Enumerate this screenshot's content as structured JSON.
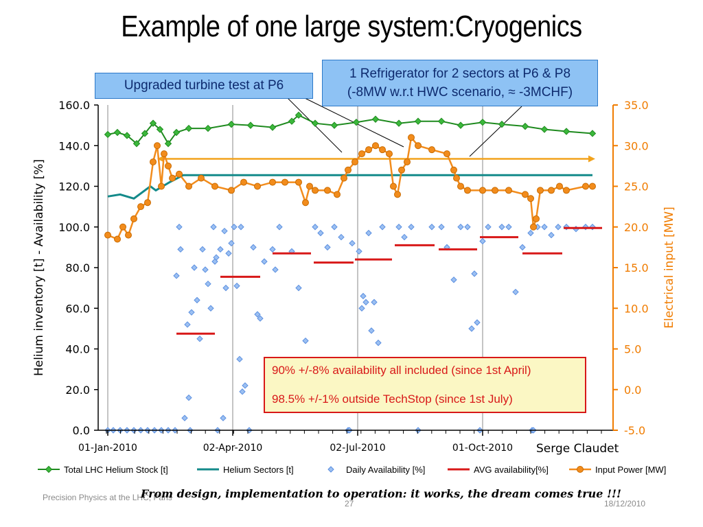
{
  "slide": {
    "title": "Example of one large system:Cryogenics",
    "author": "Serge Claudet",
    "footer_left": "Precision Physics at the LHC, Paris",
    "footer_page": "27",
    "footer_date": "18/12/2010",
    "motto": "From design, implementation to operation: it works, the dream comes true !!!"
  },
  "callouts": {
    "turbine": "Upgraded turbine test at P6",
    "refrigerator_line1": "1 Refrigerator for 2 sectors at  P6 & P8",
    "refrigerator_line2": "(-8MW w.r.t HWC scenario, ≈ -3MCHF)"
  },
  "note_box": {
    "line1": "90% +/-8% availability all included (since 1st April)",
    "line2": "98.5% +/-1% outside TechStop (since 1st July)"
  },
  "colors": {
    "stock": "#1e8a1e",
    "stock_marker": "#3cb83c",
    "sectors": "#138a8a",
    "availability": "#5b8fe0",
    "avg": "#d81818",
    "power": "#f28c1c",
    "right_axis": "#f07c00",
    "grid": "#888888"
  },
  "chart_data": {
    "type": "line",
    "x_type": "date",
    "x_range": [
      "2009-12-25",
      "2011-01-04"
    ],
    "x_ticks": [
      "2010-01-01",
      "2010-04-02",
      "2010-07-02",
      "2010-10-01"
    ],
    "x_tick_labels": [
      "01-Jan-2010",
      "02-Apr-2010",
      "02-Jul-2010",
      "01-Oct-2010"
    ],
    "ylabel": "Helium inventory [t]   - Availability [%]",
    "ylim": [
      0,
      160
    ],
    "y_ticks": [
      "0.0",
      "20.0",
      "40.0",
      "60.0",
      "80.0",
      "100.0",
      "120.0",
      "140.0",
      "160.0"
    ],
    "y2label": "Electrical input [MW]",
    "y2lim": [
      -5,
      35
    ],
    "y2_ticks": [
      "-5.0",
      "0.0",
      "5.0",
      "10.0",
      "15.0",
      "20.0",
      "25.0",
      "30.0",
      "35.0"
    ],
    "grid": "vertical-at-x-ticks",
    "legend_position": "bottom",
    "series": [
      {
        "name": "Total LHC Helium Stock [t]",
        "axis": "left",
        "style": "line-diamond",
        "points": [
          [
            "2010-01-01",
            145.5
          ],
          [
            "2010-01-08",
            146.5
          ],
          [
            "2010-01-15",
            145
          ],
          [
            "2010-01-22",
            141
          ],
          [
            "2010-01-28",
            146
          ],
          [
            "2010-02-03",
            151
          ],
          [
            "2010-02-08",
            148
          ],
          [
            "2010-02-14",
            141
          ],
          [
            "2010-02-20",
            146.5
          ],
          [
            "2010-03-01",
            148.5
          ],
          [
            "2010-03-15",
            148.5
          ],
          [
            "2010-04-01",
            150.5
          ],
          [
            "2010-04-15",
            150
          ],
          [
            "2010-05-01",
            149
          ],
          [
            "2010-05-15",
            152
          ],
          [
            "2010-05-20",
            155
          ],
          [
            "2010-06-01",
            151
          ],
          [
            "2010-06-15",
            150
          ],
          [
            "2010-07-01",
            151.5
          ],
          [
            "2010-07-15",
            153
          ],
          [
            "2010-08-01",
            151
          ],
          [
            "2010-08-15",
            152
          ],
          [
            "2010-09-01",
            152
          ],
          [
            "2010-09-15",
            150
          ],
          [
            "2010-10-01",
            151.5
          ],
          [
            "2010-10-15",
            150.5
          ],
          [
            "2010-11-01",
            149.5
          ],
          [
            "2010-11-15",
            148
          ],
          [
            "2010-12-01",
            147
          ],
          [
            "2010-12-20",
            146
          ]
        ]
      },
      {
        "name": "Helium Sectors [t]",
        "axis": "left",
        "style": "line",
        "points": [
          [
            "2010-01-01",
            115
          ],
          [
            "2010-01-10",
            116
          ],
          [
            "2010-01-20",
            114
          ],
          [
            "2010-02-01",
            120
          ],
          [
            "2010-02-05",
            118
          ],
          [
            "2010-02-15",
            122
          ],
          [
            "2010-02-25",
            125.5
          ],
          [
            "2010-03-10",
            125.5
          ],
          [
            "2010-12-20",
            125.5
          ]
        ]
      },
      {
        "name": "Daily Availability [%]",
        "axis": "left",
        "style": "diamond-markers",
        "points": [
          [
            "2010-01-01",
            0
          ],
          [
            "2010-01-05",
            0
          ],
          [
            "2010-01-10",
            0
          ],
          [
            "2010-01-15",
            0
          ],
          [
            "2010-01-20",
            0
          ],
          [
            "2010-01-25",
            0
          ],
          [
            "2010-01-30",
            0
          ],
          [
            "2010-02-04",
            0
          ],
          [
            "2010-02-09",
            0
          ],
          [
            "2010-02-14",
            0
          ],
          [
            "2010-02-19",
            0
          ],
          [
            "2010-02-20",
            76
          ],
          [
            "2010-02-22",
            100
          ],
          [
            "2010-02-23",
            89
          ],
          [
            "2010-02-26",
            6
          ],
          [
            "2010-02-28",
            52
          ],
          [
            "2010-03-01",
            16
          ],
          [
            "2010-03-02",
            0
          ],
          [
            "2010-03-03",
            58
          ],
          [
            "2010-03-05",
            80
          ],
          [
            "2010-03-07",
            64
          ],
          [
            "2010-03-09",
            45
          ],
          [
            "2010-03-11",
            89
          ],
          [
            "2010-03-13",
            79
          ],
          [
            "2010-03-15",
            72
          ],
          [
            "2010-03-17",
            60
          ],
          [
            "2010-03-19",
            100
          ],
          [
            "2010-03-20",
            83
          ],
          [
            "2010-03-21",
            85
          ],
          [
            "2010-03-22",
            0
          ],
          [
            "2010-03-24",
            89
          ],
          [
            "2010-03-26",
            6
          ],
          [
            "2010-03-27",
            98
          ],
          [
            "2010-03-28",
            70
          ],
          [
            "2010-03-30",
            87
          ],
          [
            "2010-04-01",
            92
          ],
          [
            "2010-04-03",
            100
          ],
          [
            "2010-04-05",
            71
          ],
          [
            "2010-04-07",
            35
          ],
          [
            "2010-04-08",
            100
          ],
          [
            "2010-04-09",
            19
          ],
          [
            "2010-04-11",
            22
          ],
          [
            "2010-04-14",
            0
          ],
          [
            "2010-04-17",
            90
          ],
          [
            "2010-04-20",
            57
          ],
          [
            "2010-04-22",
            55
          ],
          [
            "2010-04-25",
            83
          ],
          [
            "2010-04-28",
            34
          ],
          [
            "2010-05-01",
            89
          ],
          [
            "2010-05-03",
            79
          ],
          [
            "2010-05-06",
            100
          ],
          [
            "2010-05-15",
            88
          ],
          [
            "2010-05-20",
            70
          ],
          [
            "2010-05-25",
            44
          ],
          [
            "2010-06-01",
            100
          ],
          [
            "2010-06-05",
            97
          ],
          [
            "2010-06-10",
            90
          ],
          [
            "2010-06-15",
            100
          ],
          [
            "2010-06-20",
            95
          ],
          [
            "2010-06-25",
            0
          ],
          [
            "2010-06-26",
            0
          ],
          [
            "2010-06-28",
            92
          ],
          [
            "2010-07-03",
            88
          ],
          [
            "2010-07-05",
            60
          ],
          [
            "2010-07-06",
            66
          ],
          [
            "2010-07-08",
            63
          ],
          [
            "2010-07-10",
            97
          ],
          [
            "2010-07-12",
            49
          ],
          [
            "2010-07-14",
            63
          ],
          [
            "2010-07-17",
            43
          ],
          [
            "2010-07-20",
            100
          ],
          [
            "2010-08-01",
            100
          ],
          [
            "2010-08-05",
            95
          ],
          [
            "2010-08-10",
            100
          ],
          [
            "2010-08-15",
            0
          ],
          [
            "2010-08-25",
            100
          ],
          [
            "2010-09-01",
            100
          ],
          [
            "2010-09-05",
            90
          ],
          [
            "2010-09-10",
            74
          ],
          [
            "2010-09-15",
            100
          ],
          [
            "2010-09-20",
            100
          ],
          [
            "2010-09-23",
            50
          ],
          [
            "2010-09-25",
            77
          ],
          [
            "2010-09-27",
            53
          ],
          [
            "2010-09-29",
            0
          ],
          [
            "2010-10-01",
            93
          ],
          [
            "2010-10-05",
            100
          ],
          [
            "2010-10-15",
            100
          ],
          [
            "2010-10-20",
            100
          ],
          [
            "2010-10-25",
            68
          ],
          [
            "2010-10-30",
            90
          ],
          [
            "2010-11-05",
            97
          ],
          [
            "2010-11-06",
            0
          ],
          [
            "2010-11-07",
            0
          ],
          [
            "2010-11-10",
            100
          ],
          [
            "2010-11-15",
            100
          ],
          [
            "2010-11-20",
            96
          ],
          [
            "2010-11-25",
            100
          ],
          [
            "2010-12-01",
            100
          ],
          [
            "2010-12-08",
            99
          ],
          [
            "2010-12-15",
            100
          ],
          [
            "2010-12-20",
            100
          ]
        ]
      },
      {
        "name": "AVG availability[%]",
        "axis": "left",
        "style": "segments",
        "segments": [
          [
            "2010-02-20",
            "2010-03-20",
            47.5
          ],
          [
            "2010-03-24",
            "2010-04-22",
            75.5
          ],
          [
            "2010-05-01",
            "2010-05-29",
            87
          ],
          [
            "2010-05-31",
            "2010-06-29",
            82.5
          ],
          [
            "2010-06-30",
            "2010-07-27",
            84
          ],
          [
            "2010-07-29",
            "2010-08-27",
            91
          ],
          [
            "2010-08-30",
            "2010-09-27",
            89
          ],
          [
            "2010-09-29",
            "2010-10-27",
            95
          ],
          [
            "2010-10-30",
            "2010-11-28",
            87
          ],
          [
            "2010-11-29",
            "2010-12-27",
            99.5
          ]
        ]
      },
      {
        "name": "Input Power [MW]",
        "axis": "right",
        "style": "line-circle",
        "points": [
          [
            "2010-01-01",
            19
          ],
          [
            "2010-01-08",
            18.5
          ],
          [
            "2010-01-12",
            20
          ],
          [
            "2010-01-16",
            19
          ],
          [
            "2010-01-20",
            21
          ],
          [
            "2010-01-25",
            22.5
          ],
          [
            "2010-01-30",
            23
          ],
          [
            "2010-02-03",
            28
          ],
          [
            "2010-02-06",
            30
          ],
          [
            "2010-02-09",
            25
          ],
          [
            "2010-02-11",
            29
          ],
          [
            "2010-02-14",
            27.5
          ],
          [
            "2010-02-17",
            26
          ],
          [
            "2010-02-22",
            26.5
          ],
          [
            "2010-03-01",
            25
          ],
          [
            "2010-03-10",
            26
          ],
          [
            "2010-03-20",
            25
          ],
          [
            "2010-04-01",
            24.5
          ],
          [
            "2010-04-10",
            25.5
          ],
          [
            "2010-04-20",
            25
          ],
          [
            "2010-05-01",
            25.5
          ],
          [
            "2010-05-10",
            25.5
          ],
          [
            "2010-05-20",
            25.5
          ],
          [
            "2010-05-25",
            23
          ],
          [
            "2010-05-28",
            25
          ],
          [
            "2010-06-01",
            24.5
          ],
          [
            "2010-06-10",
            24.5
          ],
          [
            "2010-06-17",
            24
          ],
          [
            "2010-06-22",
            26
          ],
          [
            "2010-06-25",
            27
          ],
          [
            "2010-06-30",
            28
          ],
          [
            "2010-07-05",
            29
          ],
          [
            "2010-07-10",
            29.5
          ],
          [
            "2010-07-15",
            30
          ],
          [
            "2010-07-20",
            29.5
          ],
          [
            "2010-07-25",
            29
          ],
          [
            "2010-07-28",
            25
          ],
          [
            "2010-07-31",
            24
          ],
          [
            "2010-08-03",
            27
          ],
          [
            "2010-08-07",
            28
          ],
          [
            "2010-08-10",
            31
          ],
          [
            "2010-08-15",
            30
          ],
          [
            "2010-08-25",
            29.5
          ],
          [
            "2010-09-05",
            29
          ],
          [
            "2010-09-10",
            27
          ],
          [
            "2010-09-12",
            26
          ],
          [
            "2010-09-15",
            25
          ],
          [
            "2010-09-20",
            24.5
          ],
          [
            "2010-10-01",
            24.5
          ],
          [
            "2010-10-10",
            24.5
          ],
          [
            "2010-10-20",
            24.5
          ],
          [
            "2010-11-01",
            24
          ],
          [
            "2010-11-05",
            23.5
          ],
          [
            "2010-11-07",
            20
          ],
          [
            "2010-11-09",
            21
          ],
          [
            "2010-11-12",
            24.5
          ],
          [
            "2010-11-20",
            24.5
          ],
          [
            "2010-11-26",
            25
          ],
          [
            "2010-12-01",
            24.5
          ],
          [
            "2010-12-15",
            25
          ],
          [
            "2010-12-20",
            25
          ]
        ]
      }
    ],
    "reference_arrow": {
      "from": "2010-02-06",
      "to": "2010-12-22",
      "value": 133.5,
      "axis": "left"
    }
  }
}
